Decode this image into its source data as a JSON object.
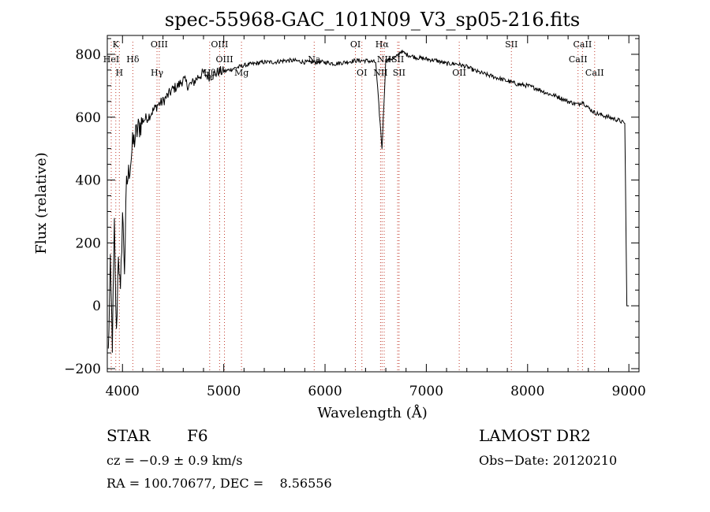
{
  "chart_data": {
    "type": "line",
    "title": "spec-55968-GAC_101N09_V3_sp05-216.fits",
    "xlabel": "Wavelength (Å)",
    "ylabel": "Flux (relative)",
    "xlim": [
      3850,
      9100
    ],
    "ylim": [
      -210,
      860
    ],
    "x_ticks": [
      4000,
      5000,
      6000,
      7000,
      8000,
      9000
    ],
    "y_ticks": [
      -200,
      0,
      200,
      400,
      600,
      800
    ],
    "grid": false,
    "series": [
      {
        "x": [
          3860,
          3880,
          3900,
          3920,
          3940,
          3960,
          3980,
          4000,
          4020,
          4040,
          4060,
          4080,
          4100,
          4150,
          4200,
          4250,
          4300,
          4350,
          4400,
          4450,
          4500,
          4550,
          4600,
          4650,
          4700,
          4750,
          4800,
          4850,
          4900,
          4950,
          5000,
          5100,
          5200,
          5300,
          5400,
          5500,
          5600,
          5700,
          5800,
          5900,
          6000,
          6100,
          6200,
          6300,
          6400,
          6500,
          6562,
          6600,
          6700,
          6750,
          6800,
          6900,
          7000,
          7100,
          7200,
          7300,
          7400,
          7500,
          7600,
          7700,
          7800,
          7900,
          8000,
          8100,
          8200,
          8300,
          8400,
          8500,
          8540,
          8600,
          8660,
          8700,
          8800,
          8900,
          8960,
          8980,
          9000
        ],
        "y": [
          -150,
          120,
          -120,
          250,
          -100,
          180,
          20,
          300,
          120,
          380,
          420,
          460,
          510,
          560,
          590,
          600,
          620,
          640,
          650,
          670,
          690,
          700,
          720,
          700,
          710,
          730,
          740,
          730,
          735,
          745,
          745,
          755,
          765,
          770,
          775,
          775,
          780,
          780,
          775,
          775,
          775,
          770,
          775,
          780,
          780,
          775,
          500,
          780,
          790,
          810,
          800,
          790,
          785,
          780,
          770,
          770,
          760,
          745,
          735,
          725,
          715,
          705,
          700,
          690,
          675,
          665,
          650,
          640,
          650,
          630,
          615,
          610,
          600,
          590,
          580,
          0,
          0
        ]
      }
    ],
    "line_markers": [
      {
        "label": "K",
        "x": 3934,
        "row": 0
      },
      {
        "label": "HeI",
        "x": 3889,
        "row": 1
      },
      {
        "label": "H",
        "x": 3969,
        "row": 2
      },
      {
        "label": "Hδ",
        "x": 4102,
        "row": 1
      },
      {
        "label": "OIII",
        "x": 4363,
        "row": 0
      },
      {
        "label": "Hγ",
        "x": 4341,
        "row": 3
      },
      {
        "label": "OIII",
        "x": 4959,
        "row": 0
      },
      {
        "label": "OIII",
        "x": 5007,
        "row": 1
      },
      {
        "label": "Hβ",
        "x": 4861,
        "row": 2
      },
      {
        "label": "Mg",
        "x": 5175,
        "row": 2
      },
      {
        "label": "Na",
        "x": 5893,
        "row": 1
      },
      {
        "label": "OI",
        "x": 6300,
        "row": 0
      },
      {
        "label": "OI",
        "x": 6364,
        "row": 2
      },
      {
        "label": "Hα",
        "x": 6563,
        "row": 0
      },
      {
        "label": "NII",
        "x": 6584,
        "row": 1
      },
      {
        "label": "NII",
        "x": 6548,
        "row": 2
      },
      {
        "label": "SII",
        "x": 6717,
        "row": 1
      },
      {
        "label": "SII",
        "x": 6731,
        "row": 2
      },
      {
        "label": "OII",
        "x": 7325,
        "row": 2
      },
      {
        "label": "SII",
        "x": 7840,
        "row": 0
      },
      {
        "label": "CaII",
        "x": 8542,
        "row": 0
      },
      {
        "label": "CaII",
        "x": 8498,
        "row": 1
      },
      {
        "label": "CaII",
        "x": 8662,
        "row": 2
      }
    ]
  },
  "info": {
    "object_type": "STAR",
    "subclass": "F6",
    "survey": "LAMOST DR2",
    "redshift": "cz = −0.9 ± 0.9 km/s",
    "obs_date": "Obs−Date: 20120210",
    "coords": "RA = 100.70677, DEC =    8.56556"
  }
}
